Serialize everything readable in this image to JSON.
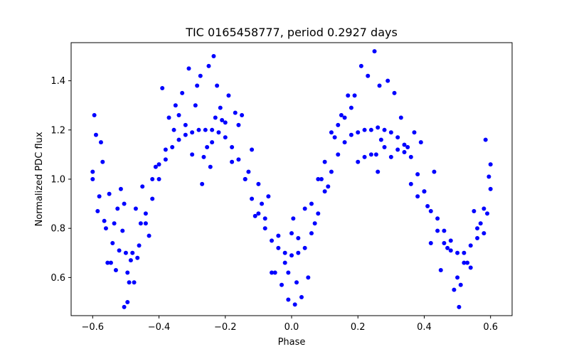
{
  "chart_data": {
    "type": "scatter",
    "title": "TIC 0165458777, period 0.2927 days",
    "xlabel": "Phase",
    "ylabel": "Normalized PDC flux",
    "xlim": [
      -0.665,
      0.665
    ],
    "ylim": [
      0.445,
      1.555
    ],
    "x_ticks": [
      -0.6,
      -0.4,
      -0.2,
      0.0,
      0.2,
      0.4,
      0.6
    ],
    "x_tick_labels": [
      "−0.6",
      "−0.4",
      "−0.2",
      "0.0",
      "0.2",
      "0.4",
      "0.6"
    ],
    "y_ticks": [
      0.6,
      0.8,
      1.0,
      1.2,
      1.4
    ],
    "y_tick_labels": [
      "0.6",
      "0.8",
      "1.0",
      "1.2",
      "1.4"
    ],
    "grid": false,
    "legend": "none",
    "series": [
      {
        "color": "#0000ff",
        "marker": "circle",
        "x": [
          -0.6,
          -0.58,
          -0.56,
          -0.54,
          -0.52,
          -0.5,
          -0.48,
          -0.46,
          -0.44,
          -0.42,
          -0.4,
          -0.38,
          -0.36,
          -0.34,
          -0.32,
          -0.3,
          -0.28,
          -0.26,
          -0.24,
          -0.22,
          -0.2,
          -0.18,
          -0.16,
          -0.14,
          -0.12,
          -0.1,
          -0.08,
          -0.06,
          -0.04,
          -0.02,
          0.0,
          0.02,
          0.04,
          0.06,
          0.08,
          0.1,
          0.12,
          0.14,
          0.16,
          0.18,
          0.2,
          0.22,
          0.24,
          0.26,
          0.28,
          0.3,
          0.32,
          0.34,
          0.36,
          0.38,
          0.4,
          0.42,
          0.44,
          0.46,
          0.48,
          0.5,
          0.52,
          0.54,
          0.56,
          0.58,
          0.6,
          -0.595,
          -0.59,
          -0.575,
          -0.57,
          -0.55,
          -0.545,
          -0.53,
          -0.525,
          -0.51,
          -0.505,
          -0.495,
          -0.49,
          -0.47,
          -0.465,
          -0.45,
          -0.43,
          -0.41,
          -0.39,
          -0.37,
          -0.35,
          -0.33,
          -0.31,
          -0.29,
          -0.275,
          -0.265,
          -0.25,
          -0.245,
          -0.235,
          -0.225,
          -0.21,
          -0.19,
          -0.17,
          -0.15,
          -0.13,
          -0.11,
          -0.09,
          -0.07,
          -0.05,
          -0.03,
          -0.01,
          0.01,
          0.03,
          0.05,
          0.07,
          0.09,
          0.11,
          0.13,
          0.15,
          0.17,
          0.19,
          0.21,
          0.23,
          0.25,
          0.255,
          0.265,
          0.27,
          0.29,
          0.31,
          0.33,
          0.35,
          0.37,
          0.39,
          0.41,
          0.43,
          0.45,
          0.47,
          0.49,
          0.505,
          0.51,
          0.53,
          0.55,
          0.57,
          0.59,
          0.595,
          -0.6,
          -0.585,
          -0.565,
          -0.555,
          -0.535,
          -0.515,
          -0.505,
          -0.495,
          -0.485,
          -0.475,
          -0.455,
          -0.44,
          -0.42,
          -0.4,
          -0.38,
          -0.355,
          -0.34,
          -0.32,
          -0.3,
          -0.285,
          -0.27,
          -0.255,
          -0.24,
          -0.23,
          -0.215,
          -0.2,
          -0.18,
          -0.16,
          -0.14,
          -0.12,
          -0.1,
          -0.08,
          -0.06,
          -0.04,
          -0.02,
          -0.01,
          0.0,
          0.005,
          0.015,
          0.02,
          0.04,
          0.06,
          0.08,
          0.1,
          0.12,
          0.14,
          0.16,
          0.18,
          0.2,
          0.22,
          0.24,
          0.26,
          0.28,
          0.3,
          0.32,
          0.34,
          0.36,
          0.38,
          0.4,
          0.42,
          0.44,
          0.46,
          0.48,
          0.5,
          0.52,
          0.54,
          0.56,
          0.58,
          0.585,
          0.6
        ],
        "y": [
          1.03,
          0.93,
          0.8,
          0.74,
          0.71,
          0.7,
          0.7,
          0.73,
          0.82,
          0.92,
          1.0,
          1.08,
          1.13,
          1.16,
          1.18,
          1.19,
          1.2,
          1.2,
          1.2,
          1.19,
          1.17,
          1.13,
          1.08,
          1.0,
          0.92,
          0.86,
          0.8,
          0.75,
          0.72,
          0.7,
          0.69,
          0.7,
          0.72,
          0.78,
          0.86,
          0.95,
          1.03,
          1.1,
          1.15,
          1.18,
          1.19,
          1.2,
          1.2,
          1.21,
          1.2,
          1.19,
          1.17,
          1.14,
          1.09,
          1.02,
          0.95,
          0.87,
          0.79,
          0.74,
          0.71,
          0.7,
          0.7,
          0.73,
          0.8,
          0.88,
          0.96,
          1.26,
          1.18,
          1.15,
          1.07,
          0.94,
          0.66,
          0.63,
          0.88,
          0.79,
          0.48,
          0.5,
          0.58,
          0.88,
          0.68,
          0.97,
          0.77,
          1.05,
          1.37,
          1.25,
          1.3,
          1.35,
          1.45,
          1.3,
          1.42,
          1.09,
          1.46,
          1.05,
          1.5,
          1.38,
          1.24,
          1.34,
          1.27,
          1.26,
          1.03,
          0.85,
          0.9,
          0.93,
          0.62,
          0.57,
          0.51,
          0.49,
          0.52,
          0.6,
          0.82,
          1.0,
          0.97,
          1.17,
          1.26,
          1.34,
          1.34,
          1.46,
          1.42,
          1.52,
          1.1,
          1.38,
          1.16,
          1.4,
          1.35,
          1.25,
          1.13,
          1.19,
          1.15,
          0.89,
          1.03,
          0.63,
          0.72,
          0.55,
          0.48,
          0.57,
          0.66,
          0.87,
          0.82,
          0.86,
          1.01,
          1.0,
          0.87,
          0.83,
          0.66,
          0.82,
          0.96,
          0.9,
          0.62,
          0.67,
          0.58,
          0.82,
          0.86,
          1.0,
          1.06,
          1.12,
          1.2,
          1.26,
          1.22,
          1.1,
          1.38,
          0.98,
          1.13,
          1.15,
          1.25,
          1.29,
          1.23,
          1.07,
          1.22,
          1.0,
          1.12,
          0.98,
          0.84,
          0.62,
          0.77,
          0.66,
          0.62,
          0.78,
          0.84,
          0.58,
          0.76,
          0.88,
          0.9,
          1.0,
          1.07,
          1.19,
          1.22,
          1.25,
          1.29,
          1.07,
          1.09,
          1.1,
          1.03,
          1.13,
          1.09,
          1.12,
          1.11,
          0.98,
          0.93,
          0.95,
          0.74,
          0.84,
          0.79,
          0.75,
          0.6,
          0.66,
          0.64,
          0.76,
          0.78,
          1.16,
          1.06
        ]
      }
    ]
  }
}
